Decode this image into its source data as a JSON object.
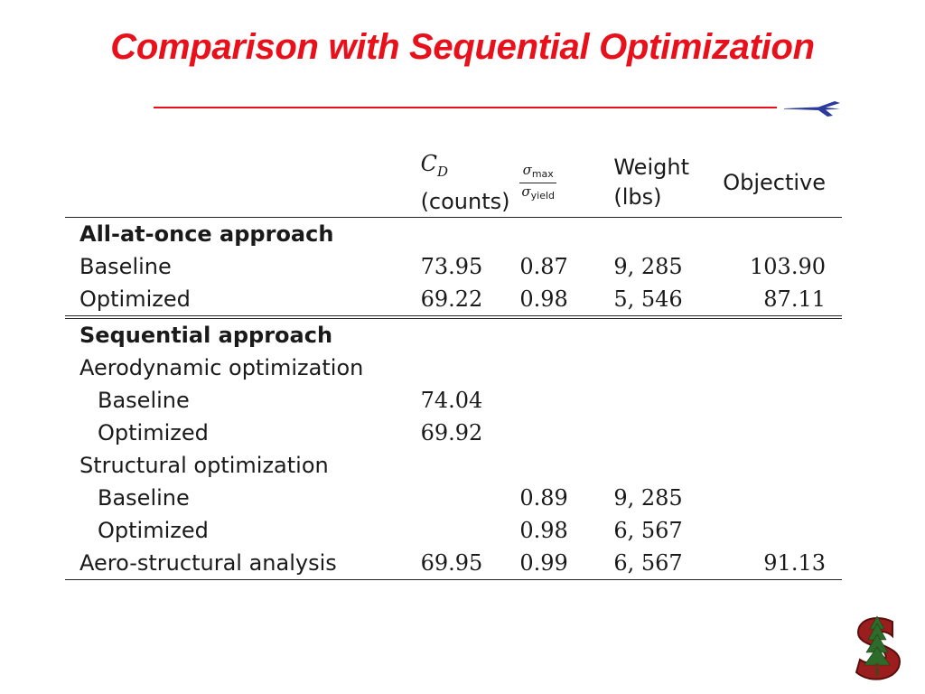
{
  "title": "Comparison with Sequential Optimization",
  "colors": {
    "title": "#e8101a",
    "rule": "#e8101a",
    "plane": "#2b3a9c",
    "logo": "#9b1d1d"
  },
  "icons": {
    "plane": "jet-plane-icon",
    "logo": "stanford-tree-logo"
  },
  "table": {
    "headers": {
      "cd_symbol": "C",
      "cd_sub": "D",
      "cd_unit": "(counts)",
      "sigma_num": "σ",
      "sigma_num_sub": "max",
      "sigma_den": "σ",
      "sigma_den_sub": "yield",
      "weight_1": "Weight",
      "weight_2": "(lbs)",
      "objective": "Objective"
    },
    "all_at_once": {
      "label": "All-at-once approach",
      "baseline": {
        "label": "Baseline",
        "cd": "73.95",
        "sigma": "0.87",
        "weight": "9, 285",
        "objective": "103.90"
      },
      "optimized": {
        "label": "Optimized",
        "cd": "69.22",
        "sigma": "0.98",
        "weight": "5, 546",
        "objective": "87.11"
      }
    },
    "sequential": {
      "label": "Sequential approach",
      "aero": {
        "label": "Aerodynamic optimization",
        "baseline": {
          "label": "Baseline",
          "cd": "74.04"
        },
        "optimized": {
          "label": "Optimized",
          "cd": "69.92"
        }
      },
      "structural": {
        "label": "Structural optimization",
        "baseline": {
          "label": "Baseline",
          "sigma": "0.89",
          "weight": "9, 285"
        },
        "optimized": {
          "label": "Optimized",
          "sigma": "0.98",
          "weight": "6, 567"
        }
      },
      "aerostructural": {
        "label": "Aero-structural analysis",
        "cd": "69.95",
        "sigma": "0.99",
        "weight": "6, 567",
        "objective": "91.13"
      }
    }
  }
}
